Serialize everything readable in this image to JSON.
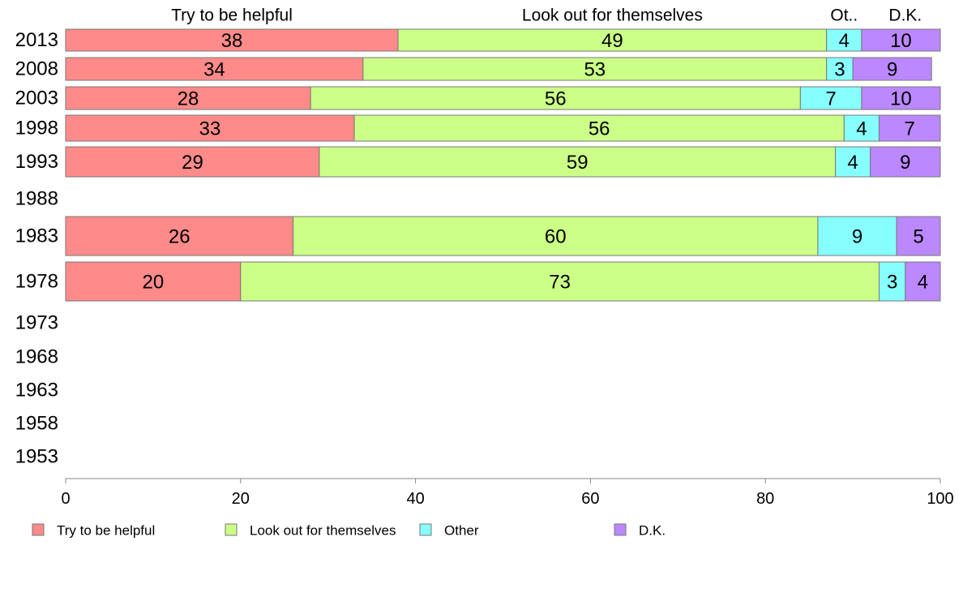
{
  "colors": {
    "series": [
      "#ff8a8a",
      "#ccff88",
      "#88ffff",
      "#bb88ff"
    ],
    "bar_stroke": "#777777",
    "axis": "#888888"
  },
  "chart_data": {
    "type": "bar",
    "orientation": "horizontal",
    "stacked": true,
    "categories": [
      "2013",
      "2008",
      "2003",
      "1998",
      "1993",
      "1988",
      "1983",
      "1978",
      "1973",
      "1968",
      "1963",
      "1958",
      "1953"
    ],
    "series": [
      {
        "name": "Try to be helpful",
        "values": [
          38,
          34,
          28,
          33,
          29,
          null,
          26,
          20,
          null,
          null,
          null,
          null,
          null
        ]
      },
      {
        "name": "Look out for themselves",
        "values": [
          49,
          53,
          56,
          56,
          59,
          null,
          60,
          73,
          null,
          null,
          null,
          null,
          null
        ]
      },
      {
        "name": "Other",
        "values": [
          4,
          3,
          7,
          4,
          4,
          null,
          9,
          3,
          null,
          null,
          null,
          null,
          null
        ]
      },
      {
        "name": "D.K.",
        "values": [
          10,
          9,
          10,
          7,
          9,
          null,
          5,
          4,
          null,
          null,
          null,
          null,
          null
        ]
      }
    ],
    "column_headers": [
      "Try to be helpful",
      "Look out for themselves",
      "Ot..",
      "D.K."
    ],
    "xlim": [
      0,
      100
    ],
    "xticks": [
      0,
      20,
      40,
      60,
      80,
      100
    ],
    "grid": false,
    "legend_position": "bottom"
  }
}
